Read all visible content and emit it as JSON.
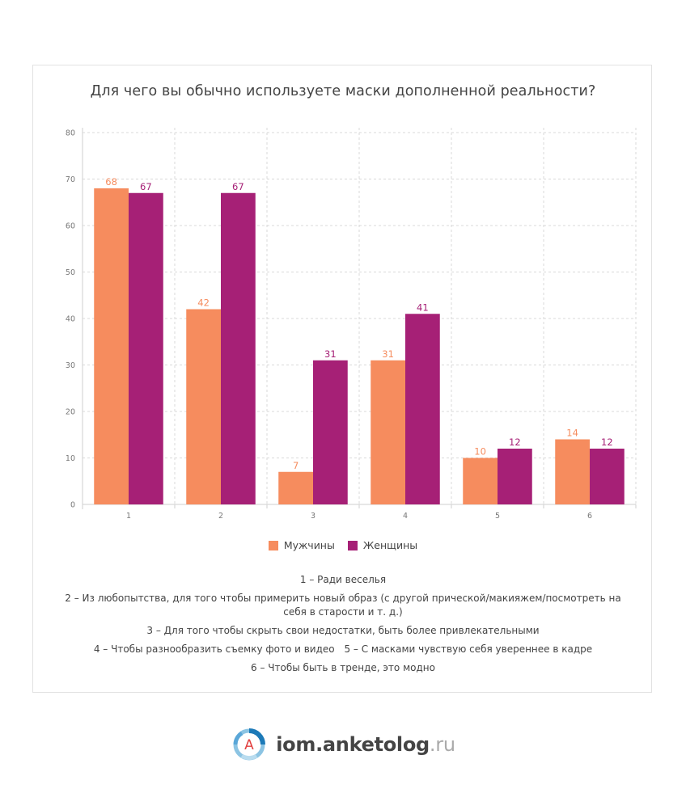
{
  "title": "Для чего вы обычно используете маски дополненной реальности?",
  "colors": {
    "men": "#f68c5e",
    "women": "#a62076",
    "grid": "#d9d9d9",
    "axis_text": "#777777"
  },
  "chart_data": {
    "type": "bar",
    "categories": [
      "1",
      "2",
      "3",
      "4",
      "5",
      "6"
    ],
    "series": [
      {
        "name": "Мужчины",
        "values": [
          68,
          42,
          7,
          31,
          10,
          14
        ]
      },
      {
        "name": "Женщины",
        "values": [
          67,
          67,
          31,
          41,
          12,
          12
        ]
      }
    ],
    "ylim": [
      0,
      80
    ],
    "yticks": [
      0,
      10,
      20,
      30,
      40,
      50,
      60,
      70,
      80
    ],
    "grid": true,
    "legend": "bottom"
  },
  "legend": [
    {
      "label": "Мужчины",
      "color": "#f68c5e"
    },
    {
      "label": "Женщины",
      "color": "#a62076"
    }
  ],
  "notes": [
    "1 – Ради веселья",
    "2 – Из любопытства, для того чтобы примерить новый образ (с другой прической/макияжем/посмотреть на себя в старости и т. д.)",
    "3 – Для того чтобы скрыть свои недостатки, быть более привлекательными",
    "4 – Чтобы разнообразить съемку фото и видео",
    "5 – С масками чувствую себя увереннее в кадре",
    "6 – Чтобы быть в тренде, это модно"
  ],
  "footer": {
    "brand": "iom.anketolog",
    "tld": ".ru",
    "logo_letter": "A"
  }
}
